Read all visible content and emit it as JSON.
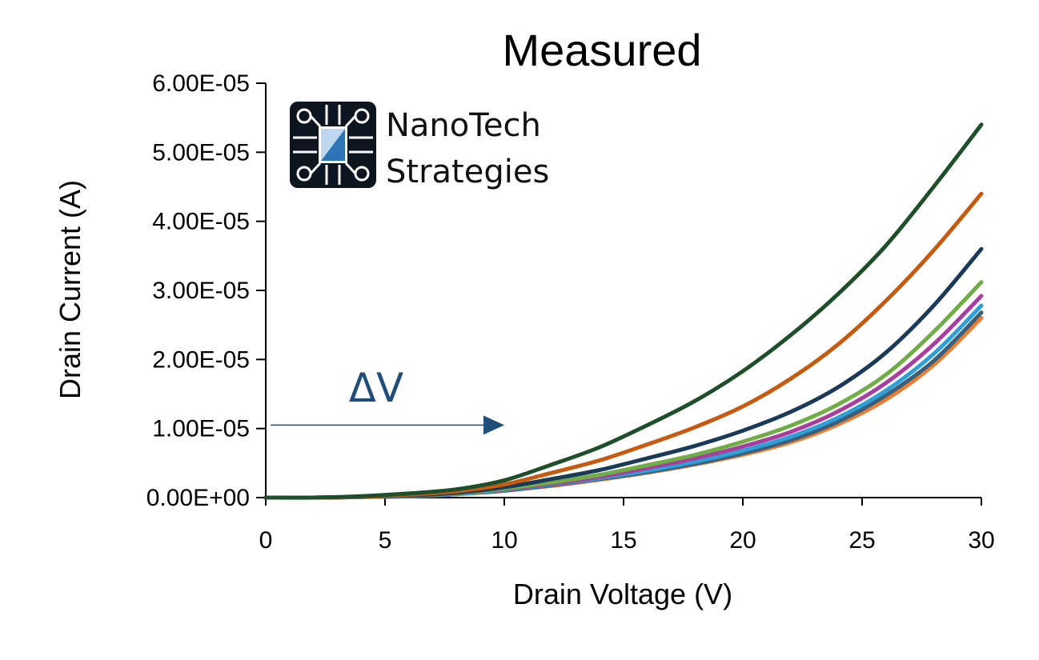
{
  "logo": {
    "line1": "NanoTech",
    "line2": "Strategies"
  },
  "chart_data": {
    "type": "line",
    "title": "Measured",
    "xlabel": "Drain Voltage (V)",
    "ylabel": "Drain Current (A)",
    "xlim": [
      0,
      30
    ],
    "ylim": [
      0,
      6e-05
    ],
    "xticks": [
      "0",
      "5",
      "10",
      "15",
      "20",
      "25",
      "30"
    ],
    "xtick_values": [
      0,
      5,
      10,
      15,
      20,
      25,
      30
    ],
    "yticks": [
      "0.00E+00",
      "1.00E-05",
      "2.00E-05",
      "3.00E-05",
      "4.00E-05",
      "5.00E-05",
      "6.00E-05"
    ],
    "ytick_values": [
      0,
      1e-05,
      2e-05,
      3e-05,
      4e-05,
      5e-05,
      6e-05
    ],
    "grid": false,
    "legend": "none",
    "x": [
      0,
      2,
      4,
      6,
      8,
      10,
      12,
      14,
      16,
      18,
      20,
      22,
      24,
      26,
      28,
      30
    ],
    "series": [
      {
        "color": "#1f4e2a",
        "values": [
          0,
          0,
          2e-07,
          6e-07,
          1.2e-06,
          2.5e-06,
          4.8e-06,
          7.3e-06,
          1.05e-05,
          1.4e-05,
          1.83e-05,
          2.35e-05,
          2.95e-05,
          3.65e-05,
          4.5e-05,
          5.4e-05
        ]
      },
      {
        "color": "#c55a11",
        "values": [
          0,
          0,
          1e-07,
          4e-07,
          9e-07,
          1.9e-06,
          3.6e-06,
          5.4e-06,
          7.7e-06,
          1.02e-05,
          1.32e-05,
          1.72e-05,
          2.22e-05,
          2.85e-05,
          3.58e-05,
          4.4e-05
        ]
      },
      {
        "color": "#1b3a57",
        "values": [
          0,
          0,
          1e-07,
          3e-07,
          7e-07,
          1.5e-06,
          2.7e-06,
          4e-06,
          5.7e-06,
          7.5e-06,
          9.7e-06,
          1.24e-05,
          1.6e-05,
          2.1e-05,
          2.78e-05,
          3.6e-05
        ]
      },
      {
        "color": "#70ad47",
        "values": [
          0,
          0,
          1e-07,
          3e-07,
          6e-07,
          1.3e-06,
          2.2e-06,
          3.3e-06,
          4.7e-06,
          6.2e-06,
          8.1e-06,
          1.04e-05,
          1.35e-05,
          1.78e-05,
          2.4e-05,
          3.12e-05
        ]
      },
      {
        "color": "#a83e9e",
        "values": [
          0,
          0,
          1e-07,
          3e-07,
          6e-07,
          1.2e-06,
          2e-06,
          3e-06,
          4.3e-06,
          5.7e-06,
          7.4e-06,
          9.5e-06,
          1.25e-05,
          1.66e-05,
          2.22e-05,
          2.92e-05
        ]
      },
      {
        "color": "#2f9fd8",
        "values": [
          0,
          0,
          1e-07,
          2e-07,
          5e-07,
          1.1e-06,
          1.9e-06,
          2.8e-06,
          3.9e-06,
          5.2e-06,
          6.8e-06,
          8.8e-06,
          1.16e-05,
          1.55e-05,
          2.08e-05,
          2.78e-05
        ]
      },
      {
        "color": "#3b5f7a",
        "values": [
          0,
          0,
          1e-07,
          2e-07,
          5e-07,
          1e-06,
          1.8e-06,
          2.7e-06,
          3.7e-06,
          4.9e-06,
          6.4e-06,
          8.3e-06,
          1.1e-05,
          1.48e-05,
          1.98e-05,
          2.68e-05
        ]
      },
      {
        "color": "#ed7d31",
        "values": [
          0,
          0,
          1e-07,
          2e-07,
          5e-07,
          1e-06,
          1.7e-06,
          2.6e-06,
          3.6e-06,
          4.8e-06,
          6.2e-06,
          8e-06,
          1.06e-05,
          1.42e-05,
          1.92e-05,
          2.6e-05
        ]
      }
    ],
    "annotation": {
      "text": "ΔV",
      "color": "#1f4e79",
      "arrow_from_x": 0,
      "arrow_to_x": 10,
      "arrow_y": 1.05e-05
    }
  }
}
